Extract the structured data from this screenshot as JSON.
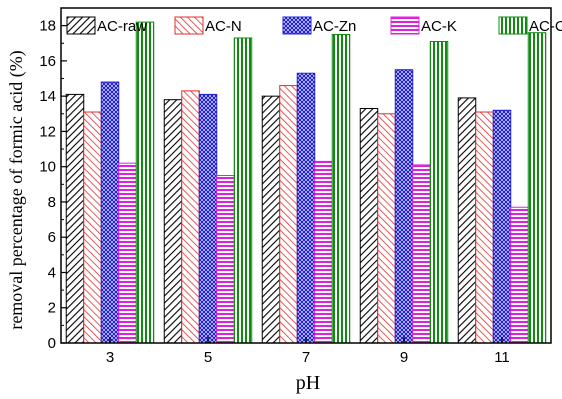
{
  "chart_data": {
    "type": "bar",
    "xlabel": "pH",
    "ylabel": "removal percentage of formic acid (%)",
    "categories": [
      "3",
      "5",
      "7",
      "9",
      "11"
    ],
    "ylim": [
      0,
      19
    ],
    "yticks": [
      0,
      2,
      4,
      6,
      8,
      10,
      12,
      14,
      16,
      18
    ],
    "grid": false,
    "legend_position": "top",
    "series": [
      {
        "name": "AC-raw",
        "values": [
          14.1,
          13.8,
          14.0,
          13.3,
          13.9
        ],
        "color": "#000000",
        "pattern": "diagonal-hatch"
      },
      {
        "name": "AC-N",
        "values": [
          13.1,
          14.3,
          14.6,
          13.0,
          13.1
        ],
        "color": "#e03030",
        "pattern": "diagonal-hatch"
      },
      {
        "name": "AC-Zn",
        "values": [
          14.8,
          14.1,
          15.3,
          15.5,
          13.2
        ],
        "color": "#2020d0",
        "pattern": "crosshatch"
      },
      {
        "name": "AC-K",
        "values": [
          10.2,
          9.5,
          10.3,
          10.1,
          7.7
        ],
        "color": "#e020e0",
        "pattern": "horizontal"
      },
      {
        "name": "AC-Cl",
        "values": [
          18.2,
          17.3,
          17.5,
          17.1,
          17.6
        ],
        "color": "#108a10",
        "pattern": "vertical"
      }
    ]
  }
}
